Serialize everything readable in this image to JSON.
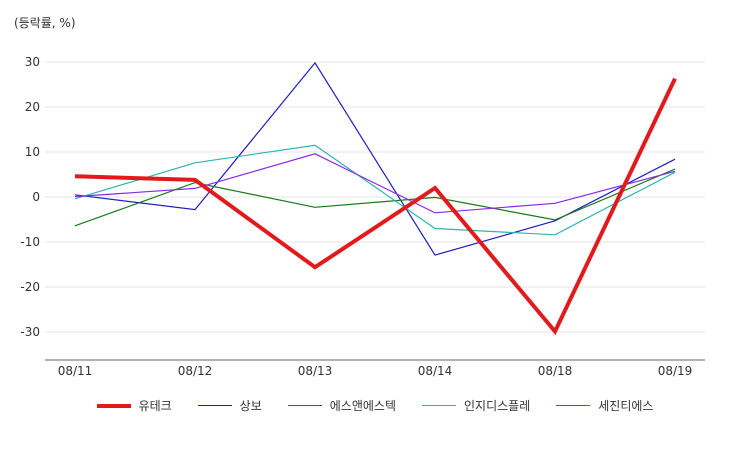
{
  "unit_label": "(등락률, %)",
  "chart_data": {
    "type": "line",
    "categories": [
      "08/11",
      "08/12",
      "08/13",
      "08/14",
      "08/18",
      "08/19"
    ],
    "ylim": [
      -35,
      30
    ],
    "yticks": [
      30,
      20,
      10,
      0,
      -10,
      -20,
      -30
    ],
    "ylabel": "(등락률, %)",
    "grid": true,
    "legend_position": "bottom",
    "series": [
      {
        "name": "유테크",
        "color": "#e31a1c",
        "width": 4,
        "values": [
          4.6,
          3.8,
          -15.6,
          2.0,
          -29.9,
          26.3
        ]
      },
      {
        "name": "상보",
        "color": "#1f1fbf",
        "width": 1.2,
        "values": [
          0.5,
          -2.8,
          29.8,
          -12.9,
          -5.3,
          8.4
        ]
      },
      {
        "name": "에스앤에스텍",
        "color": "#1a7a1a",
        "width": 1.2,
        "values": [
          -6.4,
          3.2,
          -2.3,
          -0.1,
          -5.1,
          6.2
        ]
      },
      {
        "name": "인지디스플레",
        "color": "#2bb5b5",
        "width": 1.2,
        "values": [
          -0.4,
          7.6,
          11.5,
          -7.0,
          -8.4,
          5.5
        ]
      },
      {
        "name": "세진티에스",
        "color": "#8a2be2",
        "width": 1.2,
        "values": [
          0.1,
          1.9,
          9.6,
          -3.5,
          -1.4,
          5.7
        ]
      }
    ]
  }
}
